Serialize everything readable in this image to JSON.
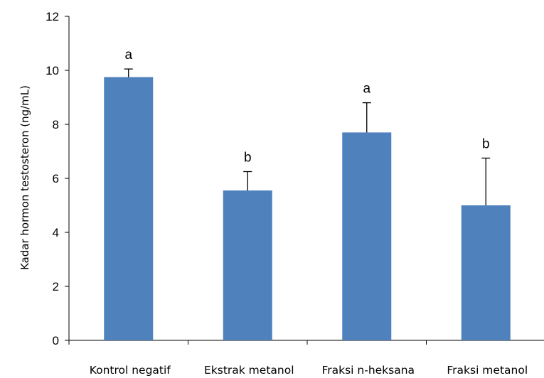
{
  "chart_data": {
    "type": "bar",
    "ylabel": "Kadar hormon testosteron (ng/mL)",
    "xlabel": "",
    "categories": [
      "Kontrol negatif",
      "Ekstrak metanol",
      "Fraksi n-heksana",
      "Fraksi metanol"
    ],
    "values": [
      9.75,
      5.55,
      7.7,
      5.0
    ],
    "error_plus": [
      0.3,
      0.7,
      1.1,
      1.75
    ],
    "labels": [
      "a",
      "b",
      "a",
      "b"
    ],
    "ylim": [
      0,
      12
    ],
    "yticks": [
      0,
      2,
      4,
      6,
      8,
      10,
      12
    ],
    "ytick_labels": [
      "0",
      "2",
      "4",
      "6",
      "8",
      "10",
      "12"
    ],
    "grid": false,
    "legend": "none",
    "colors": {
      "bar": "#4F81BD",
      "axis": "#000000"
    }
  }
}
